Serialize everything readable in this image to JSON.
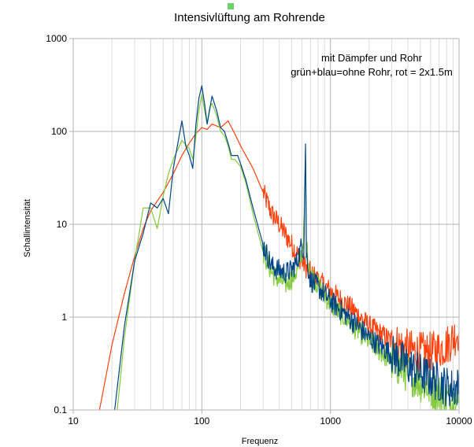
{
  "chart_data": {
    "type": "line",
    "title": "Intensivlüftung am Rohrende",
    "xlabel": "Frequenz",
    "ylabel": "Schallintensität",
    "x_scale": "log",
    "y_scale": "log",
    "xlim": [
      10,
      10000
    ],
    "ylim": [
      0.1,
      1000
    ],
    "x_ticks": [
      10,
      100,
      1000,
      10000
    ],
    "x_tick_labels": [
      "10",
      "100",
      "1000",
      "10000"
    ],
    "y_ticks": [
      0.1,
      1,
      10,
      100,
      1000
    ],
    "y_tick_labels": [
      "0.1",
      "1",
      "10",
      "100",
      "1000"
    ],
    "grid": true,
    "annotations": [
      "mit Dämpfer und Rohr",
      "grün+blau=ohne Rohr, rot = 2x1.5m"
    ],
    "series": [
      {
        "color": "#ff420e",
        "x": [
          16,
          20,
          25,
          30,
          35,
          40,
          50,
          60,
          70,
          80,
          90,
          100,
          110,
          120,
          140,
          160,
          180,
          200,
          250,
          300,
          350,
          400,
          500,
          600,
          640,
          700,
          800,
          1000,
          1500,
          2000,
          3000,
          4000,
          5000,
          6000,
          7000,
          8000,
          9000,
          10000
        ],
        "y": [
          0.1,
          0.5,
          1.8,
          4.5,
          9,
          14,
          22,
          35,
          55,
          75,
          95,
          110,
          105,
          120,
          110,
          130,
          95,
          70,
          40,
          22,
          13,
          10,
          6,
          4,
          3.5,
          3,
          2.5,
          1.9,
          1.2,
          0.8,
          0.55,
          0.45,
          0.42,
          0.42,
          0.45,
          0.5,
          0.6,
          0.7
        ]
      },
      {
        "color": "#004586",
        "x": [
          21,
          25,
          30,
          35,
          40,
          45,
          50,
          55,
          60,
          70,
          75,
          80,
          85,
          90,
          95,
          100,
          105,
          110,
          115,
          120,
          130,
          140,
          150,
          160,
          170,
          180,
          190,
          200,
          220,
          250,
          300,
          350,
          400,
          450,
          500,
          550,
          600,
          620,
          640,
          650,
          660,
          680,
          700,
          800,
          1000,
          1500,
          2000,
          3000,
          4000,
          5000,
          6000,
          7000,
          8000,
          9000,
          10000
        ],
        "y": [
          0.1,
          0.8,
          4,
          8,
          17,
          15,
          19,
          13,
          40,
          130,
          70,
          55,
          40,
          120,
          230,
          310,
          200,
          120,
          170,
          240,
          170,
          110,
          100,
          75,
          55,
          55,
          55,
          45,
          30,
          15,
          6,
          3.5,
          3.2,
          3,
          3.2,
          4,
          6,
          5,
          80,
          5,
          4,
          3,
          2.5,
          2.1,
          1.5,
          0.9,
          0.6,
          0.4,
          0.3,
          0.25,
          0.22,
          0.2,
          0.18,
          0.17,
          0.18
        ]
      },
      {
        "color": "#83ca3c",
        "x": [
          22,
          25,
          30,
          35,
          40,
          45,
          50,
          55,
          60,
          70,
          80,
          85,
          90,
          95,
          100,
          105,
          110,
          115,
          120,
          130,
          140,
          150,
          160,
          170,
          180,
          200,
          220,
          250,
          300,
          350,
          400,
          450,
          500,
          550,
          600,
          620,
          640,
          650,
          660,
          680,
          700,
          800,
          1000,
          1500,
          2000,
          3000,
          4000,
          5000,
          6000,
          7000,
          8000,
          9000,
          10000
        ],
        "y": [
          0.1,
          0.6,
          4,
          15,
          15,
          9,
          20,
          35,
          50,
          80,
          65,
          50,
          90,
          170,
          250,
          170,
          120,
          180,
          200,
          150,
          100,
          90,
          70,
          50,
          50,
          42,
          28,
          13,
          5,
          3,
          2.5,
          2.3,
          2.6,
          3.2,
          5,
          8,
          45,
          6,
          5,
          4,
          3,
          2.2,
          1.4,
          0.8,
          0.55,
          0.33,
          0.25,
          0.2,
          0.17,
          0.15,
          0.13,
          0.12,
          0.12
        ]
      }
    ]
  }
}
